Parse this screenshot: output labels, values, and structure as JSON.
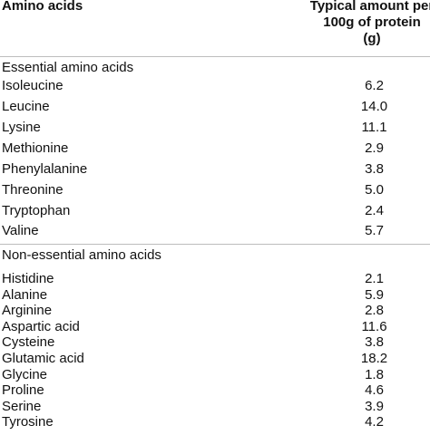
{
  "header": {
    "col_name": "Amino acids",
    "col_value_line1": "Typical amount per",
    "col_value_line2": "100g of protein",
    "col_value_line3": "(g)"
  },
  "essential": {
    "title": "Essential amino acids",
    "rows": [
      {
        "name": "Isoleucine",
        "value": "6.2"
      },
      {
        "name": "Leucine",
        "value": "14.0"
      },
      {
        "name": "Lysine",
        "value": "11.1"
      },
      {
        "name": "Methionine",
        "value": "2.9"
      },
      {
        "name": "Phenylalanine",
        "value": "3.8"
      },
      {
        "name": "Threonine",
        "value": "5.0"
      },
      {
        "name": "Tryptophan",
        "value": "2.4"
      },
      {
        "name": "Valine",
        "value": "5.7"
      }
    ]
  },
  "nonessential": {
    "title": "Non-essential amino acids",
    "rows": [
      {
        "name": "Histidine",
        "value": "2.1"
      },
      {
        "name": "Alanine",
        "value": "5.9"
      },
      {
        "name": "Arginine",
        "value": "2.8"
      },
      {
        "name": "Aspartic acid",
        "value": "11.6"
      },
      {
        "name": "Cysteine",
        "value": "3.8"
      },
      {
        "name": "Glutamic acid",
        "value": "18.2"
      },
      {
        "name": "Glycine",
        "value": "1.8"
      },
      {
        "name": "Proline",
        "value": "4.6"
      },
      {
        "name": "Serine",
        "value": "3.9"
      },
      {
        "name": "Tyrosine",
        "value": "4.2"
      }
    ]
  }
}
